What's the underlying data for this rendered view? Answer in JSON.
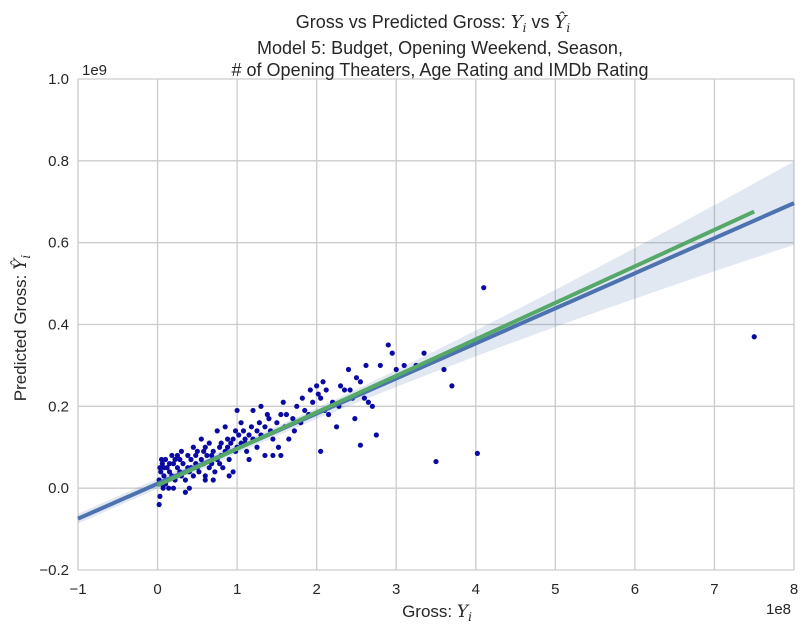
{
  "chart_data": {
    "type": "scatter",
    "title": {
      "line1_prefix": "Gross vs Predicted Gross: ",
      "line1_math": "Y",
      "line1_mid": " vs ",
      "line1_hat": "Ŷ",
      "line2": "Model 5: Budget, Opening Weekend, Season,",
      "line3": "# of Opening Theaters, Age Rating and IMDb Rating"
    },
    "xlabel": {
      "prefix": "Gross: ",
      "math": "Y",
      "sub": "i"
    },
    "ylabel": {
      "prefix": "Predicted Gross: ",
      "math": "Ŷ",
      "sub": "i"
    },
    "x_offset_text": "1e8",
    "y_offset_text": "1e9",
    "xlim": [
      -1,
      8
    ],
    "ylim": [
      -0.2,
      1.0
    ],
    "x_ticks": [
      "−1",
      "0",
      "1",
      "2",
      "3",
      "4",
      "5",
      "6",
      "7",
      "8"
    ],
    "x_tick_values": [
      -1,
      0,
      1,
      2,
      3,
      4,
      5,
      6,
      7,
      8
    ],
    "y_ticks": [
      "−0.2",
      "0.0",
      "0.2",
      "0.4",
      "0.6",
      "0.8",
      "1.0"
    ],
    "y_tick_values": [
      -0.2,
      0.0,
      0.2,
      0.4,
      0.6,
      0.8,
      1.0
    ],
    "grid": true,
    "series": [
      {
        "kind": "points",
        "color": "#0a0aa3",
        "points": [
          [
            0.02,
            -0.04
          ],
          [
            0.03,
            -0.02
          ],
          [
            0.05,
            0.01
          ],
          [
            0.02,
            0.02
          ],
          [
            0.04,
            0.04
          ],
          [
            0.06,
            0.06
          ],
          [
            0.03,
            0.05
          ],
          [
            0.08,
            0.03
          ],
          [
            0.1,
            0.01
          ],
          [
            0.07,
            0.0
          ],
          [
            0.12,
            0.02
          ],
          [
            0.15,
            0.04
          ],
          [
            0.18,
            0.03
          ],
          [
            0.14,
            0.0
          ],
          [
            0.2,
            0.06
          ],
          [
            0.22,
            0.02
          ],
          [
            0.25,
            0.05
          ],
          [
            0.28,
            0.04
          ],
          [
            0.3,
            0.03
          ],
          [
            0.32,
            0.06
          ],
          [
            0.35,
            0.02
          ],
          [
            0.38,
            0.05
          ],
          [
            0.4,
            0.04
          ],
          [
            0.42,
            0.07
          ],
          [
            0.45,
            0.03
          ],
          [
            0.48,
            0.06
          ],
          [
            0.5,
            0.05
          ],
          [
            0.52,
            0.04
          ],
          [
            0.55,
            0.07
          ],
          [
            0.58,
            0.06
          ],
          [
            0.6,
            0.03
          ],
          [
            0.62,
            0.08
          ],
          [
            0.65,
            0.05
          ],
          [
            0.68,
            0.06
          ],
          [
            0.7,
            0.09
          ],
          [
            0.72,
            0.04
          ],
          [
            0.75,
            0.07
          ],
          [
            0.78,
            0.1
          ],
          [
            0.8,
            0.08
          ],
          [
            0.82,
            0.05
          ],
          [
            0.85,
            0.09
          ],
          [
            0.88,
            0.1
          ],
          [
            0.9,
            0.07
          ],
          [
            0.92,
            0.11
          ],
          [
            0.95,
            0.12
          ],
          [
            0.98,
            0.09
          ],
          [
            1.0,
            0.1
          ],
          [
            1.02,
            0.13
          ],
          [
            1.05,
            0.11
          ],
          [
            1.08,
            0.14
          ],
          [
            1.1,
            0.12
          ],
          [
            1.12,
            0.09
          ],
          [
            1.15,
            0.13
          ],
          [
            1.18,
            0.15
          ],
          [
            1.2,
            0.12
          ],
          [
            1.25,
            0.14
          ],
          [
            1.28,
            0.16
          ],
          [
            1.3,
            0.13
          ],
          [
            1.35,
            0.15
          ],
          [
            1.4,
            0.17
          ],
          [
            1.42,
            0.14
          ],
          [
            1.45,
            0.12
          ],
          [
            1.5,
            0.16
          ],
          [
            1.52,
            0.1
          ],
          [
            1.55,
            0.18
          ],
          [
            1.6,
            0.15
          ],
          [
            1.65,
            0.12
          ],
          [
            1.7,
            0.17
          ],
          [
            1.75,
            0.2
          ],
          [
            1.8,
            0.16
          ],
          [
            1.85,
            0.19
          ],
          [
            1.9,
            0.18
          ],
          [
            1.95,
            0.21
          ],
          [
            2.0,
            0.25
          ],
          [
            2.02,
            0.23
          ],
          [
            2.05,
            0.22
          ],
          [
            2.08,
            0.26
          ],
          [
            2.1,
            0.19
          ],
          [
            2.2,
            0.21
          ],
          [
            2.25,
            0.15
          ],
          [
            2.3,
            0.25
          ],
          [
            2.35,
            0.24
          ],
          [
            2.4,
            0.29
          ],
          [
            2.45,
            0.22
          ],
          [
            2.5,
            0.27
          ],
          [
            2.55,
            0.26
          ],
          [
            2.6,
            0.22
          ],
          [
            2.65,
            0.21
          ],
          [
            2.7,
            0.2
          ],
          [
            2.75,
            0.13
          ],
          [
            2.9,
            0.35
          ],
          [
            2.95,
            0.33
          ],
          [
            3.0,
            0.29
          ],
          [
            3.1,
            0.3
          ],
          [
            3.25,
            0.3
          ],
          [
            3.35,
            0.33
          ],
          [
            3.5,
            0.065
          ],
          [
            3.6,
            0.29
          ],
          [
            3.7,
            0.25
          ],
          [
            4.02,
            0.085
          ],
          [
            4.1,
            0.49
          ],
          [
            7.5,
            0.37
          ],
          [
            2.55,
            0.105
          ],
          [
            2.05,
            0.09
          ],
          [
            1.55,
            0.08
          ],
          [
            1.45,
            0.08
          ],
          [
            0.95,
            0.04
          ],
          [
            0.6,
            0.02
          ],
          [
            0.35,
            -0.01
          ],
          [
            0.1,
            0.07
          ],
          [
            0.05,
            0.07
          ],
          [
            0.15,
            0.06
          ],
          [
            0.25,
            0.08
          ],
          [
            0.45,
            0.1
          ],
          [
            0.55,
            0.12
          ],
          [
            0.65,
            0.11
          ],
          [
            0.75,
            0.14
          ],
          [
            0.85,
            0.15
          ],
          [
            1.05,
            0.16
          ],
          [
            1.0,
            0.19
          ],
          [
            1.2,
            0.19
          ],
          [
            1.3,
            0.2
          ],
          [
            1.15,
            0.07
          ],
          [
            0.9,
            0.03
          ],
          [
            0.7,
            0.02
          ],
          [
            0.4,
            0.0
          ],
          [
            0.2,
            0.0
          ],
          [
            0.18,
            0.08
          ],
          [
            0.3,
            0.09
          ],
          [
            0.5,
            0.09
          ],
          [
            0.78,
            0.06
          ],
          [
            1.38,
            0.18
          ],
          [
            1.58,
            0.21
          ],
          [
            1.92,
            0.24
          ],
          [
            2.15,
            0.18
          ],
          [
            2.42,
            0.24
          ],
          [
            2.62,
            0.3
          ],
          [
            2.8,
            0.3
          ],
          [
            0.08,
            0.05
          ],
          [
            0.12,
            0.05
          ],
          [
            0.22,
            0.07
          ],
          [
            0.28,
            0.07
          ],
          [
            0.38,
            0.08
          ],
          [
            0.48,
            0.08
          ],
          [
            0.58,
            0.09
          ],
          [
            0.68,
            0.08
          ],
          [
            0.88,
            0.12
          ],
          [
            0.98,
            0.14
          ],
          [
            1.1,
            0.11
          ],
          [
            1.25,
            0.1
          ],
          [
            1.62,
            0.18
          ],
          [
            1.72,
            0.14
          ],
          [
            1.82,
            0.22
          ],
          [
            2.12,
            0.24
          ],
          [
            2.28,
            0.2
          ],
          [
            2.48,
            0.17
          ],
          [
            1.35,
            0.08
          ],
          [
            0.8,
            0.11
          ],
          [
            0.6,
            0.1
          ],
          [
            0.42,
            0.05
          ]
        ]
      },
      {
        "kind": "regression",
        "name": "",
        "color": "#4c72b0",
        "intercept": 0.011,
        "slope": 0.0857,
        "x_range": [
          -1,
          8
        ]
      },
      {
        "kind": "regression",
        "name": "",
        "color": "#55a868",
        "intercept": 0.007,
        "slope": 0.0892,
        "x_range": [
          0,
          7.5
        ]
      }
    ],
    "confidence_band": {
      "color": "#4c72b0",
      "opacity": 0.16,
      "half_width_at_max": 0.09
    }
  }
}
